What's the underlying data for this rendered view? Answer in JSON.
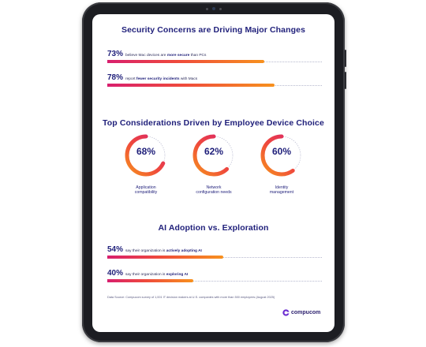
{
  "section1": {
    "title": "Security Concerns are Driving Major Changes",
    "stats": [
      {
        "pct": "73%",
        "pre": "believe Mac devices are ",
        "bold": "more secure",
        "post": " than PCs",
        "value": 73
      },
      {
        "pct": "78%",
        "pre": "report ",
        "bold": "fewer security incidents",
        "post": " with Macs",
        "value": 78
      }
    ]
  },
  "section2": {
    "title": "Top Considerations Driven by Employee Device Choice",
    "rings": [
      {
        "pct": "68%",
        "value": 68,
        "label_line1": "Application",
        "label_line2": "compatibility"
      },
      {
        "pct": "62%",
        "value": 62,
        "label_line1": "Network",
        "label_line2": "configuration needs"
      },
      {
        "pct": "60%",
        "value": 60,
        "label_line1": "Identity",
        "label_line2": "management"
      }
    ]
  },
  "section3": {
    "title": "AI Adoption vs. Exploration",
    "stats": [
      {
        "pct": "54%",
        "pre": "say their organization is ",
        "bold": "actively adopting AI",
        "post": "",
        "value": 54
      },
      {
        "pct": "40%",
        "pre": "say their organization is ",
        "bold": "exploring AI",
        "post": "",
        "value": 40
      }
    ]
  },
  "source": "Data Source: Compucom survey of 1,001 IT decision makers at U.S. companies with more than 500 employees (August 2025)",
  "logo": {
    "text": "compucom",
    "icon": "compucom-logo-icon"
  },
  "colors": {
    "navy": "#1f1f7a",
    "gradient_start": "#d81f6e",
    "gradient_mid": "#ef4a3c",
    "gradient_end": "#f7911e",
    "track": "#b7b9cf"
  },
  "chart_data": [
    {
      "type": "bar",
      "title": "Security Concerns are Driving Major Changes",
      "categories": [
        "believe Mac devices are more secure than PCs",
        "report fewer security incidents with Macs"
      ],
      "values": [
        73,
        78
      ],
      "ylim": [
        0,
        100
      ]
    },
    {
      "type": "pie",
      "title": "Top Considerations Driven by Employee Device Choice",
      "categories": [
        "Application compatibility",
        "Network configuration needs",
        "Identity management"
      ],
      "values": [
        68,
        62,
        60
      ],
      "ylim": [
        0,
        100
      ]
    },
    {
      "type": "bar",
      "title": "AI Adoption vs. Exploration",
      "categories": [
        "say their organization is actively adopting AI",
        "say their organization is exploring AI"
      ],
      "values": [
        54,
        40
      ],
      "ylim": [
        0,
        100
      ]
    }
  ]
}
